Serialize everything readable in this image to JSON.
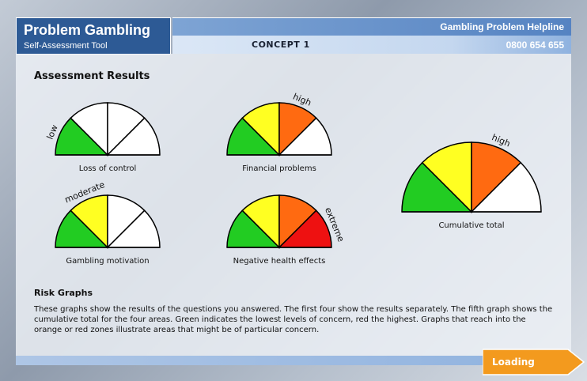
{
  "header": {
    "title": "Problem Gambling",
    "subtitle": "Self-Assessment Tool",
    "helpline_label": "Gambling Problem Helpline",
    "concept": "CONCEPT 1",
    "helpline_number": "0800 654 655"
  },
  "section_title": "Assessment Results",
  "gauges": [
    {
      "label": "Loss of control",
      "level_label": "low",
      "segments": [
        "#22cc22",
        "#ffffff",
        "#ffffff",
        "#ffffff"
      ]
    },
    {
      "label": "Financial problems",
      "level_label": "high",
      "segments": [
        "#22cc22",
        "#ffff22",
        "#ff6a11",
        "#ffffff"
      ]
    },
    {
      "label": "Gambling motivation",
      "level_label": "moderate",
      "segments": [
        "#22cc22",
        "#ffff22",
        "#ffffff",
        "#ffffff"
      ]
    },
    {
      "label": "Negative health effects",
      "level_label": "extreme",
      "segments": [
        "#22cc22",
        "#ffff22",
        "#ff6a11",
        "#ee1111"
      ]
    },
    {
      "label": "Cumulative total",
      "level_label": "high",
      "segments": [
        "#22cc22",
        "#ffff22",
        "#ff6a11",
        "#ffffff"
      ]
    }
  ],
  "risk": {
    "title": "Risk Graphs",
    "text": "These graphs show the results of the questions you answered. The first four show the results separately. The fifth graph shows the cumulative total for the four areas.  Green indicates the lowest levels of concern, red the highest. Graphs that reach into the orange or red zones illustrate areas that might be of particular concern."
  },
  "button": "Loading"
}
